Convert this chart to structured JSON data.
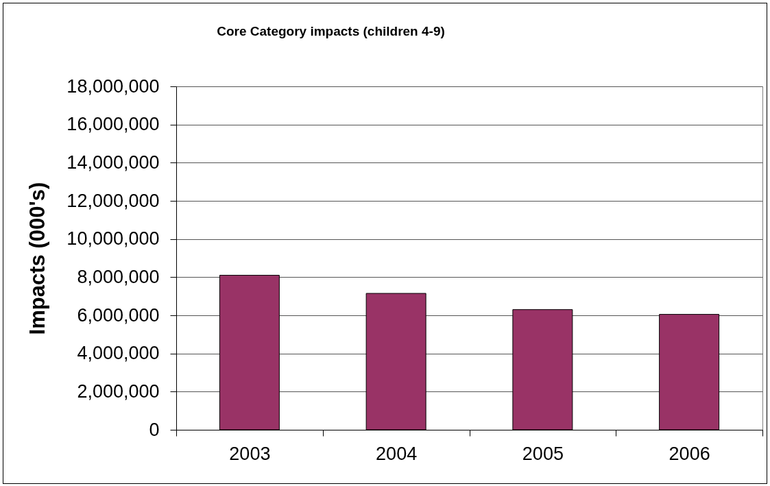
{
  "chart_data": {
    "type": "bar",
    "title": "Core Category impacts (children 4-9)",
    "ylabel": "Impacts (000's)",
    "categories": [
      "2003",
      "2004",
      "2005",
      "2006"
    ],
    "values": [
      8100000,
      7150000,
      6300000,
      6050000
    ],
    "color": "#993366",
    "ylim": [
      0,
      18000000
    ],
    "yticks": [
      0,
      {
        "value": 2000000,
        "label": "2,000,000"
      },
      {
        "value": 4000000,
        "label": "4,000,000"
      },
      {
        "value": 6000000,
        "label": "6,000,000"
      },
      {
        "value": 8000000,
        "label": "8,000,000"
      },
      {
        "value": 10000000,
        "label": "10,000,000"
      },
      {
        "value": 12000000,
        "label": "12,000,000"
      },
      {
        "value": 14000000,
        "label": "14,000,000"
      },
      {
        "value": 16000000,
        "label": "16,000,000"
      },
      {
        "value": 18000000,
        "label": "18,000,000"
      }
    ],
    "grid": "y"
  }
}
